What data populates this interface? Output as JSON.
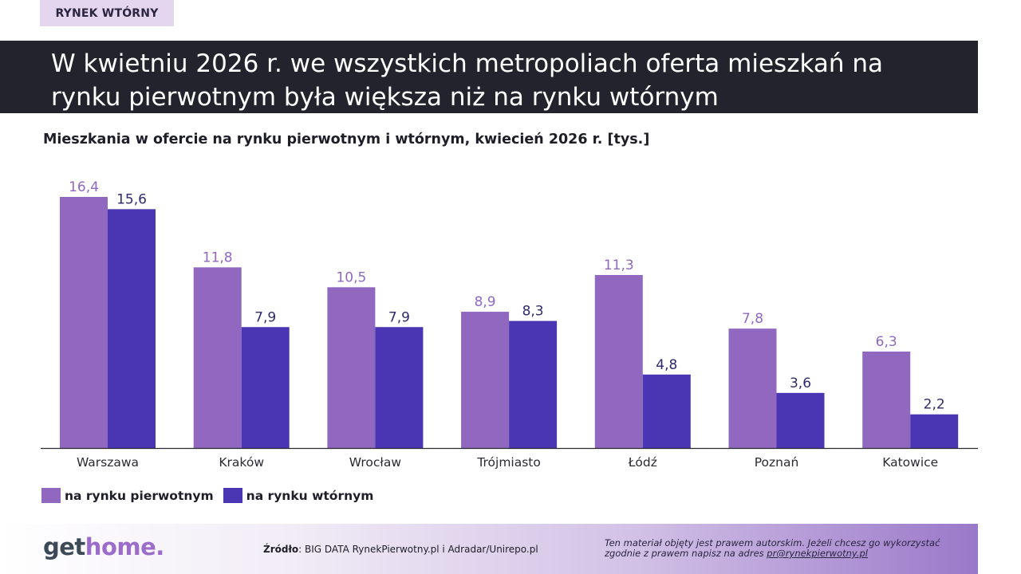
{
  "tag": "RYNEK WTÓRNY",
  "banner_title": "W kwietniu 2026 r. we wszystkich metropoliach oferta mieszkań na rynku pierwotnym była większa niż na rynku wtórnym",
  "colors": {
    "primary_series": "#9068c0",
    "secondary_series": "#4a35b3",
    "banner_bg": "#23232d",
    "tag_bg": "#e4d6ee"
  },
  "chart_data": {
    "type": "bar",
    "title": "Mieszkania w ofercie na rynku pierwotnym i wtórnym, kwiecień 2026 r. [tys.]",
    "categories": [
      "Warszawa",
      "Kraków",
      "Wrocław",
      "Trójmiasto",
      "Łódź",
      "Poznań",
      "Katowice"
    ],
    "series": [
      {
        "name": "na rynku pierwotnym",
        "values": [
          16.4,
          11.8,
          10.5,
          8.9,
          11.3,
          7.8,
          6.3
        ],
        "labels": [
          "16,4",
          "11,8",
          "10,5",
          "8,9",
          "11,3",
          "7,8",
          "6,3"
        ],
        "color": "#9068c0"
      },
      {
        "name": "na rynku wtórnym",
        "values": [
          15.6,
          7.9,
          7.9,
          8.3,
          4.8,
          3.6,
          2.2
        ],
        "labels": [
          "15,6",
          "7,9",
          "7,9",
          "8,3",
          "4,8",
          "3,6",
          "2,2"
        ],
        "color": "#4a35b3"
      }
    ],
    "ylim": [
      0,
      16.4
    ],
    "grid": false,
    "legend": "bottom-left"
  },
  "footer": {
    "logo_part1": "get",
    "logo_part2": "home.",
    "source_label": "Źródło",
    "source_text": ": BIG DATA RynekPierwotny.pl i Adradar/Unirepo.pl",
    "copyright_text": "Ten materiał objęty jest prawem autorskim. Jeżeli chcesz go wykorzystać zgodnie z prawem napisz na adres ",
    "copyright_email": "pr@rynekpierwotny.pl"
  }
}
